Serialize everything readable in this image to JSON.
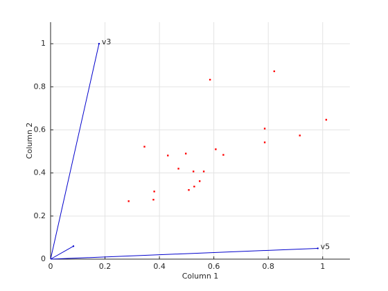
{
  "chart_data": {
    "type": "biplot",
    "xlabel": "Column 1",
    "ylabel": "Column 2",
    "xlim": [
      0,
      1.1
    ],
    "ylim": [
      0,
      1.1
    ],
    "xticks": [
      0,
      0.2,
      0.4,
      0.6,
      0.8,
      1
    ],
    "yticks": [
      0,
      0.2,
      0.4,
      0.6,
      0.8,
      1
    ],
    "grid": true,
    "vectors": {
      "color": "#0000cc",
      "labels": [
        "v3",
        null,
        "v5"
      ],
      "x": [
        0.178,
        0.084,
        0.982
      ],
      "y": [
        1.0,
        0.06,
        0.05
      ]
    },
    "points": {
      "color": "#ff0000",
      "x": [
        0.586,
        0.822,
        1.013,
        0.787,
        0.916,
        0.787,
        0.345,
        0.497,
        0.607,
        0.431,
        0.635,
        0.47,
        0.525,
        0.563,
        0.548,
        0.528,
        0.508,
        0.381,
        0.378,
        0.287
      ],
      "y": [
        0.833,
        0.872,
        0.647,
        0.606,
        0.574,
        0.542,
        0.522,
        0.49,
        0.51,
        0.481,
        0.484,
        0.42,
        0.407,
        0.407,
        0.362,
        0.337,
        0.321,
        0.314,
        0.276,
        0.269
      ]
    }
  }
}
